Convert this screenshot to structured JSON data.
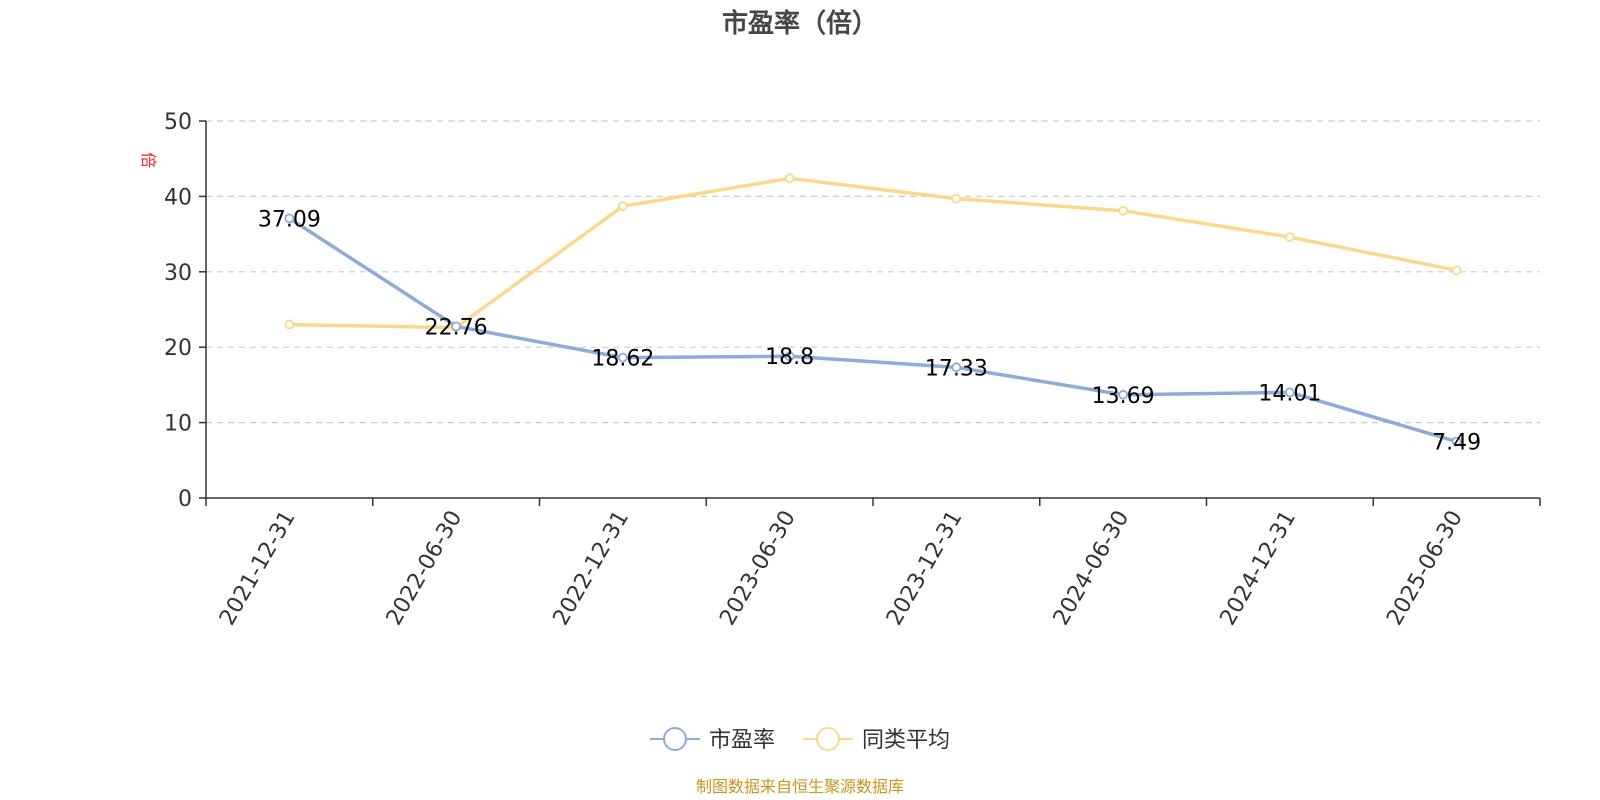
{
  "title": "市盈率（倍）",
  "source_note": "制图数据来自恒生聚源数据库",
  "chart_data": {
    "type": "line",
    "title": "市盈率（倍）",
    "y_unit": "倍",
    "categories": [
      "2021-12-31",
      "2022-06-30",
      "2022-12-31",
      "2023-06-30",
      "2023-12-31",
      "2024-06-30",
      "2024-12-31",
      "2025-06-30"
    ],
    "ylim": [
      0,
      50
    ],
    "yticks": [
      0,
      10,
      20,
      30,
      40,
      50
    ],
    "grid": true,
    "legend_position": "bottom-center",
    "series": [
      {
        "name": "市盈率",
        "color": "#8eacd8",
        "values": [
          37.09,
          22.76,
          18.62,
          18.8,
          17.33,
          13.69,
          14.01,
          7.49
        ],
        "labels": [
          "37.09",
          "22.76",
          "18.62",
          "18.8",
          "17.33",
          "13.69",
          "14.01",
          "7.49"
        ]
      },
      {
        "name": "同类平均",
        "color": "#fad98f",
        "values": [
          23.0,
          22.6,
          38.7,
          42.4,
          39.7,
          38.1,
          34.6,
          30.2
        ]
      }
    ]
  }
}
